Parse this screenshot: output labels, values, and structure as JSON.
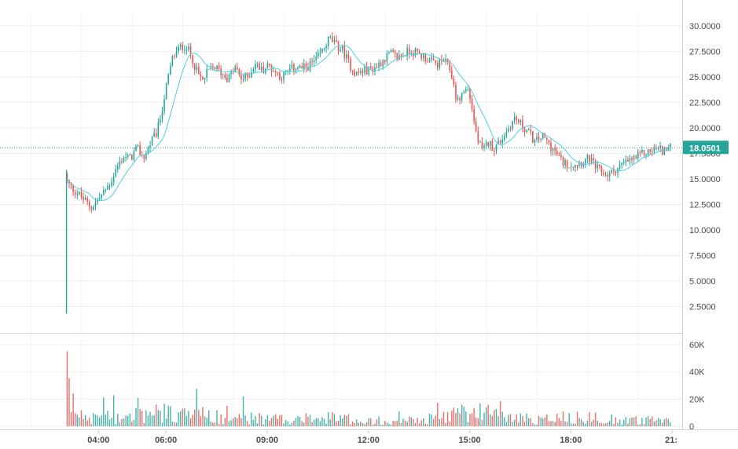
{
  "chart_data": {
    "type": "candlestick",
    "title": "",
    "price_axis": {
      "ticks": [
        "2.5000",
        "5.0000",
        "7.5000",
        "10.0000",
        "12.5000",
        "15.0000",
        "17.5000",
        "20.0000",
        "22.5000",
        "25.0000",
        "27.5000",
        "30.0000"
      ],
      "tick_values": [
        2.5,
        5,
        7.5,
        10,
        12.5,
        15,
        17.5,
        20,
        22.5,
        25,
        27.5,
        30
      ],
      "ylim": [
        0,
        31.3
      ],
      "position": "right"
    },
    "last_price": {
      "label": "18.0501",
      "value": 18.0501,
      "color": "#26a69a"
    },
    "volume_axis": {
      "ticks": [
        "0",
        "20K",
        "40K",
        "60K"
      ],
      "tick_values": [
        0,
        20000,
        40000,
        60000
      ],
      "ylim": [
        0,
        67000
      ]
    },
    "time_axis": {
      "ticks": [
        "04:00",
        "06:00",
        "09:00",
        "12:00",
        "15:00",
        "18:00",
        "21:"
      ],
      "tick_hours": [
        4,
        6,
        9,
        12,
        15,
        18,
        21
      ],
      "range_hours": [
        1.08,
        21.3
      ]
    },
    "price_path": {
      "description_units": "hour, price",
      "points": [
        [
          3.05,
          1.8
        ],
        [
          3.07,
          15.5
        ],
        [
          3.15,
          14.5
        ],
        [
          3.3,
          14.0
        ],
        [
          3.5,
          13.4
        ],
        [
          3.7,
          12.7
        ],
        [
          3.85,
          12.2
        ],
        [
          4.0,
          12.8
        ],
        [
          4.2,
          13.6
        ],
        [
          4.4,
          14.6
        ],
        [
          4.6,
          16.1
        ],
        [
          4.8,
          17.2
        ],
        [
          5.0,
          17.0
        ],
        [
          5.2,
          18.0
        ],
        [
          5.4,
          17.1
        ],
        [
          5.6,
          18.5
        ],
        [
          5.8,
          19.6
        ],
        [
          5.95,
          22.0
        ],
        [
          6.1,
          24.5
        ],
        [
          6.25,
          26.8
        ],
        [
          6.45,
          27.8
        ],
        [
          6.65,
          28.1
        ],
        [
          6.85,
          26.7
        ],
        [
          7.0,
          25.3
        ],
        [
          7.15,
          24.6
        ],
        [
          7.3,
          25.5
        ],
        [
          7.5,
          26.0
        ],
        [
          7.7,
          25.4
        ],
        [
          7.9,
          24.8
        ],
        [
          8.1,
          25.9
        ],
        [
          8.3,
          24.8
        ],
        [
          8.5,
          25.1
        ],
        [
          8.7,
          26.3
        ],
        [
          8.9,
          25.7
        ],
        [
          9.1,
          26.1
        ],
        [
          9.3,
          25.5
        ],
        [
          9.5,
          25.0
        ],
        [
          9.7,
          25.6
        ],
        [
          9.9,
          26.0
        ],
        [
          10.1,
          25.8
        ],
        [
          10.3,
          26.1
        ],
        [
          10.5,
          26.6
        ],
        [
          10.7,
          27.6
        ],
        [
          10.9,
          28.8
        ],
        [
          11.1,
          28.1
        ],
        [
          11.3,
          27.6
        ],
        [
          11.5,
          26.2
        ],
        [
          11.7,
          25.3
        ],
        [
          11.9,
          25.6
        ],
        [
          12.1,
          25.7
        ],
        [
          12.3,
          26.0
        ],
        [
          12.5,
          26.7
        ],
        [
          12.7,
          27.3
        ],
        [
          12.9,
          26.9
        ],
        [
          13.1,
          27.2
        ],
        [
          13.3,
          27.6
        ],
        [
          13.5,
          27.3
        ],
        [
          13.7,
          27.0
        ],
        [
          13.9,
          26.5
        ],
        [
          14.1,
          26.2
        ],
        [
          14.3,
          26.6
        ],
        [
          14.5,
          25.6
        ],
        [
          14.6,
          23.9
        ],
        [
          14.7,
          22.5
        ],
        [
          14.85,
          23.5
        ],
        [
          15.0,
          23.9
        ],
        [
          15.1,
          22.6
        ],
        [
          15.2,
          20.4
        ],
        [
          15.3,
          18.8
        ],
        [
          15.45,
          17.6
        ],
        [
          15.6,
          18.6
        ],
        [
          15.8,
          18.0
        ],
        [
          16.0,
          18.9
        ],
        [
          16.2,
          19.9
        ],
        [
          16.4,
          21.0
        ],
        [
          16.6,
          20.3
        ],
        [
          16.8,
          19.6
        ],
        [
          17.0,
          18.6
        ],
        [
          17.2,
          19.2
        ],
        [
          17.4,
          18.5
        ],
        [
          17.6,
          17.6
        ],
        [
          17.8,
          16.7
        ],
        [
          18.0,
          16.4
        ],
        [
          18.2,
          16.5
        ],
        [
          18.4,
          16.7
        ],
        [
          18.6,
          17.0
        ],
        [
          18.8,
          16.1
        ],
        [
          19.0,
          15.6
        ],
        [
          19.2,
          15.4
        ],
        [
          19.4,
          16.0
        ],
        [
          19.6,
          16.4
        ],
        [
          19.8,
          16.8
        ],
        [
          20.0,
          17.1
        ],
        [
          20.2,
          17.5
        ],
        [
          20.4,
          17.7
        ],
        [
          20.6,
          18.0
        ],
        [
          20.8,
          17.8
        ],
        [
          21.0,
          18.05
        ]
      ]
    },
    "volume_profile": {
      "description_units": "hour, volume",
      "points": [
        [
          3.05,
          64000
        ],
        [
          3.1,
          42000
        ],
        [
          3.2,
          20000
        ],
        [
          3.35,
          11000
        ],
        [
          3.6,
          8000
        ],
        [
          4.0,
          7000
        ],
        [
          5.0,
          9000
        ],
        [
          6.0,
          11000
        ],
        [
          7.0,
          9000
        ],
        [
          8.0,
          7000
        ],
        [
          9.0,
          6000
        ],
        [
          10.0,
          6000
        ],
        [
          11.0,
          7000
        ],
        [
          12.0,
          5000
        ],
        [
          13.0,
          5000
        ],
        [
          14.0,
          6000
        ],
        [
          14.6,
          12000
        ],
        [
          15.0,
          9000
        ],
        [
          15.4,
          13000
        ],
        [
          16.0,
          7000
        ],
        [
          17.0,
          6000
        ],
        [
          18.0,
          8000
        ],
        [
          19.0,
          6000
        ],
        [
          20.0,
          5000
        ],
        [
          21.0,
          4000
        ]
      ]
    },
    "up_color": "#26a69a",
    "down_color": "#ef5350",
    "ma_color": "#4dd0e1",
    "grid": true
  }
}
